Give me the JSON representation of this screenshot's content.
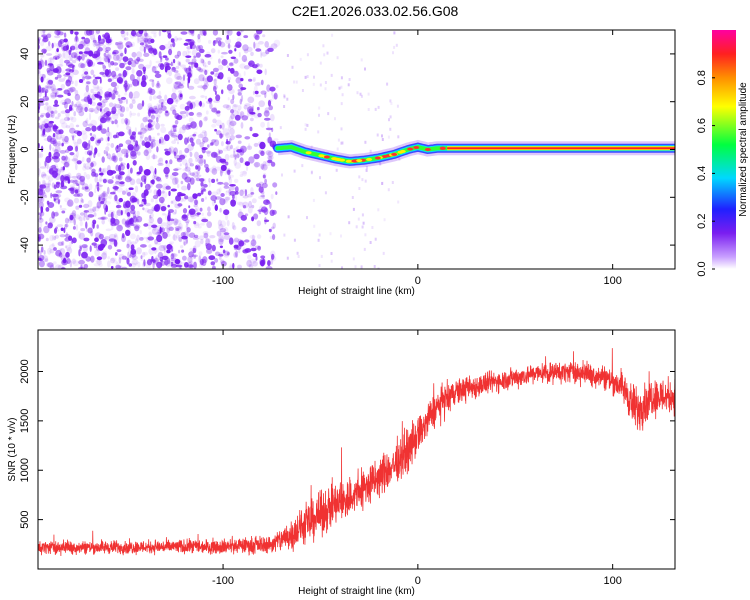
{
  "title": "C2E1.2026.033.02.56.G08",
  "colors": {
    "spectrogram_dot": "#7a1ef0",
    "snr_line": "#f03232",
    "axis": "#000000"
  },
  "chart_data": [
    {
      "type": "heatmap",
      "xlabel": "Height of straight line (km)",
      "ylabel": "Frequency (Hz)",
      "xlim": [
        -195,
        132
      ],
      "ylim": [
        -50,
        50
      ],
      "x_ticks": [
        -100,
        0,
        100
      ],
      "x_tick_labels": [
        "-100",
        "0",
        "100"
      ],
      "y_ticks": [
        -40,
        -20,
        0,
        20,
        40
      ],
      "y_tick_labels": [
        "-40",
        "-20",
        "0",
        "20",
        "40"
      ],
      "noise_region_x": [
        -195,
        -72
      ],
      "ridge": {
        "x": [
          -72,
          -65,
          -58,
          -50,
          -42,
          -35,
          -28,
          -20,
          -12,
          -5,
          0,
          5,
          10,
          15,
          132
        ],
        "y": [
          0.5,
          1.0,
          -1.0,
          -2.5,
          -4.0,
          -5.0,
          -4.5,
          -3.5,
          -2.0,
          0.0,
          1.0,
          0.0,
          0.5,
          0.5,
          0.5
        ]
      },
      "colorbar": {
        "label": "Normalized spectral amplitude",
        "range": [
          0.0,
          1.0
        ],
        "ticks": [
          0.0,
          0.2,
          0.4,
          0.6,
          0.8
        ],
        "tick_labels": [
          "0.0",
          "0.2",
          "0.4",
          "0.6",
          "0.8"
        ],
        "colormap": "purple-blue-cyan-green-yellow-red"
      }
    },
    {
      "type": "line",
      "xlabel": "Height of straight line (km)",
      "ylabel": "SNR (10 * v/v)",
      "xlim": [
        -195,
        132
      ],
      "ylim": [
        0,
        2420
      ],
      "x_ticks": [
        -100,
        0,
        100
      ],
      "x_tick_labels": [
        "-100",
        "0",
        "100"
      ],
      "y_ticks": [
        500,
        1000,
        1500,
        2000
      ],
      "y_tick_labels": [
        "500",
        "1000",
        "1500",
        "2000"
      ],
      "envelope": {
        "x": [
          -195,
          -150,
          -100,
          -75,
          -65,
          -55,
          -45,
          -35,
          -25,
          -15,
          -5,
          0,
          10,
          20,
          30,
          40,
          60,
          80,
          95,
          105,
          112,
          120,
          132
        ],
        "mean": [
          220,
          220,
          230,
          250,
          350,
          480,
          620,
          720,
          850,
          1000,
          1200,
          1350,
          1650,
          1800,
          1850,
          1900,
          1980,
          2000,
          1950,
          1850,
          1600,
          1750,
          1750
        ],
        "spread": [
          100,
          100,
          110,
          130,
          250,
          300,
          330,
          330,
          320,
          300,
          300,
          280,
          250,
          200,
          180,
          160,
          150,
          160,
          180,
          220,
          350,
          300,
          250
        ]
      }
    }
  ]
}
